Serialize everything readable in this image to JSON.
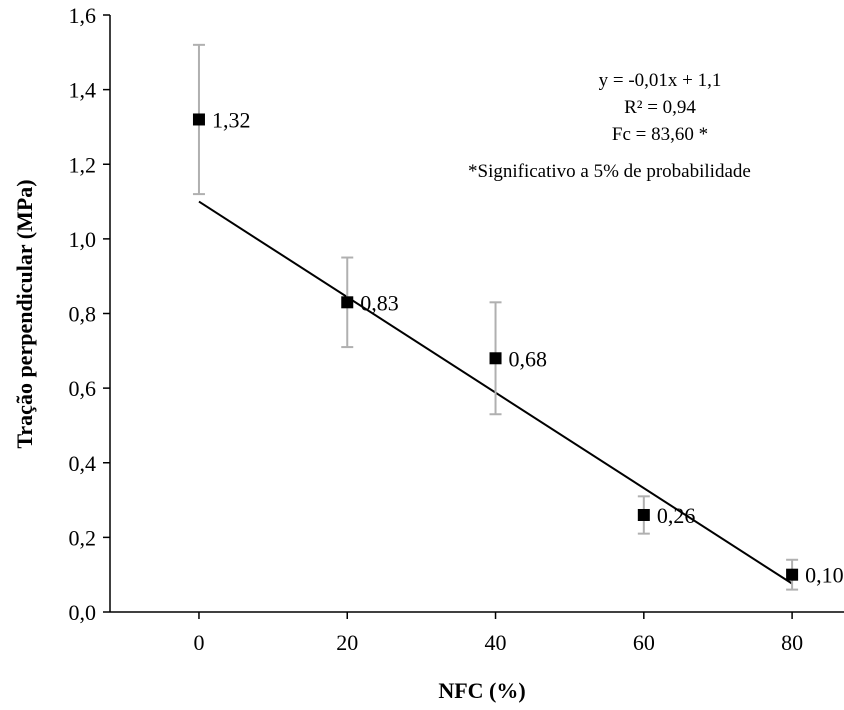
{
  "chart_data": {
    "type": "scatter",
    "xlabel": "NFC (%)",
    "ylabel": "Tração perpendicular (MPa)",
    "xlim": [
      -12,
      87
    ],
    "ylim": [
      0,
      1.6
    ],
    "x_ticks": [
      0,
      20,
      40,
      60,
      80
    ],
    "x_tick_labels": [
      "0",
      "20",
      "40",
      "60",
      "80"
    ],
    "y_ticks": [
      0,
      0.2,
      0.4,
      0.6,
      0.8,
      1.0,
      1.2,
      1.4,
      1.6
    ],
    "y_tick_labels": [
      "0,0",
      "0,2",
      "0,4",
      "0,6",
      "0,8",
      "1,0",
      "1,2",
      "1,4",
      "1,6"
    ],
    "grid": false,
    "series": [
      {
        "x": [
          0,
          20,
          40,
          60,
          80
        ],
        "y": [
          1.32,
          0.83,
          0.68,
          0.26,
          0.1
        ],
        "error": [
          0.2,
          0.12,
          0.15,
          0.05,
          0.04
        ],
        "labels": [
          "1,32",
          "0,83",
          "0,68",
          "0,26",
          "0,10"
        ],
        "marker_color": "#000000",
        "error_color": "#b0b0b0"
      }
    ],
    "trendline": {
      "slope": -0.0128,
      "intercept": 1.1,
      "x_range": [
        0,
        80
      ],
      "color": "#000000"
    },
    "annotations": [
      "y = -0,01x + 1,1",
      "R² = 0,94",
      "Fc =  83,60 *",
      "*Significativo a 5% de probabilidade"
    ]
  }
}
